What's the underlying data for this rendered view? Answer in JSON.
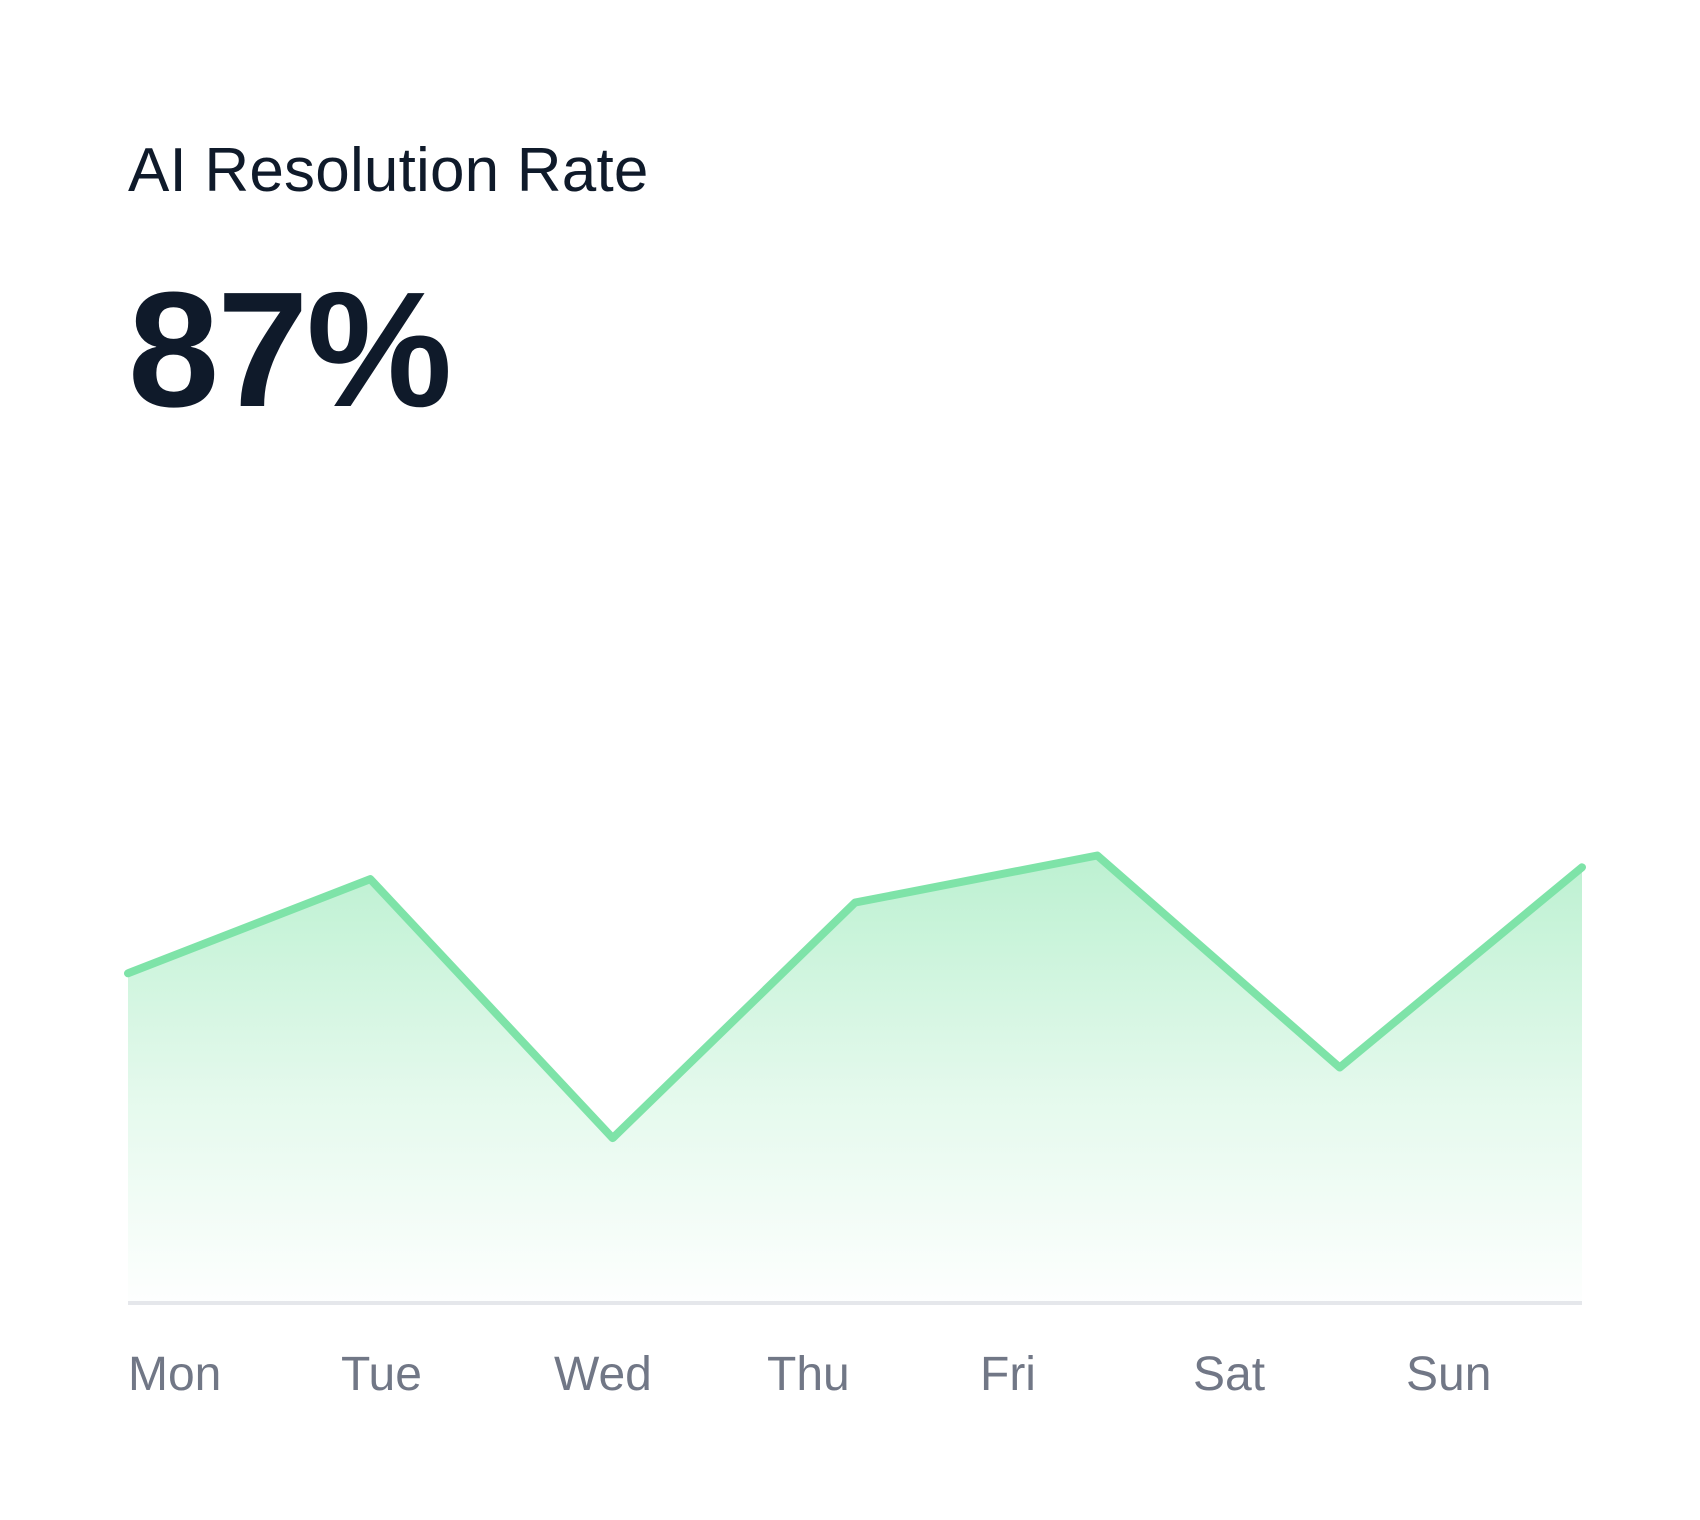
{
  "card": {
    "title": "AI Resolution Rate",
    "value": "87%"
  },
  "colors": {
    "text": "#0f1a2a",
    "line": "#7ee3a8",
    "fill": "#b5efcc",
    "axis": "#e5e7eb",
    "tick": "#717786"
  },
  "chart_data": {
    "type": "area",
    "title": "AI Resolution Rate",
    "xlabel": "",
    "ylabel": "",
    "grid": false,
    "legend": "none",
    "categories": [
      "Mon",
      "Tue",
      "Wed",
      "Thu",
      "Fri",
      "Sat",
      "Sun"
    ],
    "series": [
      {
        "name": "AI Resolution Rate",
        "values": [
          82,
          86,
          75,
          85,
          87,
          78,
          86.5
        ]
      }
    ],
    "ylim": [
      68,
      97
    ]
  }
}
